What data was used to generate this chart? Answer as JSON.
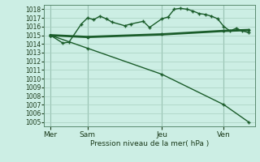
{
  "bg_color": "#cceee4",
  "grid_color": "#a8cfc0",
  "line_color": "#1a5c2a",
  "xlabel": "Pression niveau de la mer( hPa )",
  "ylim": [
    1004.5,
    1018.5
  ],
  "yticks": [
    1005,
    1006,
    1007,
    1008,
    1009,
    1010,
    1011,
    1012,
    1013,
    1014,
    1015,
    1016,
    1017,
    1018
  ],
  "day_labels": [
    "Mer",
    "Sam",
    "Jeu",
    "Ven"
  ],
  "day_positions": [
    0,
    6,
    18,
    28
  ],
  "xlim": [
    -1,
    33
  ],
  "series1_x": [
    0,
    2,
    3,
    5,
    6,
    7,
    8,
    9,
    10,
    12,
    13,
    15,
    16,
    18,
    19,
    20,
    21,
    22,
    23,
    24,
    25,
    26,
    27,
    28,
    29,
    30,
    31,
    32
  ],
  "series1_y": [
    1015.0,
    1014.1,
    1014.2,
    1016.3,
    1017.0,
    1016.8,
    1017.2,
    1016.9,
    1016.5,
    1016.1,
    1016.3,
    1016.6,
    1015.9,
    1016.9,
    1017.1,
    1018.0,
    1018.1,
    1018.0,
    1017.8,
    1017.5,
    1017.4,
    1017.2,
    1016.9,
    1016.0,
    1015.5,
    1015.8,
    1015.5,
    1015.3
  ],
  "series2_x": [
    0,
    6,
    18,
    28,
    32
  ],
  "series2_y": [
    1015.0,
    1014.8,
    1015.1,
    1015.5,
    1015.6
  ],
  "series3_x": [
    0,
    6,
    18,
    28,
    32
  ],
  "series3_y": [
    1015.0,
    1013.5,
    1010.5,
    1007.0,
    1005.0
  ],
  "vline_positions": [
    0,
    6,
    18,
    28
  ],
  "marker1": "+",
  "marker2": "D",
  "marker3": "+",
  "markersize1": 3,
  "markersize2": 1.5,
  "markersize3": 3,
  "linewidth1": 1.0,
  "linewidth2": 2.0,
  "linewidth3": 1.0
}
